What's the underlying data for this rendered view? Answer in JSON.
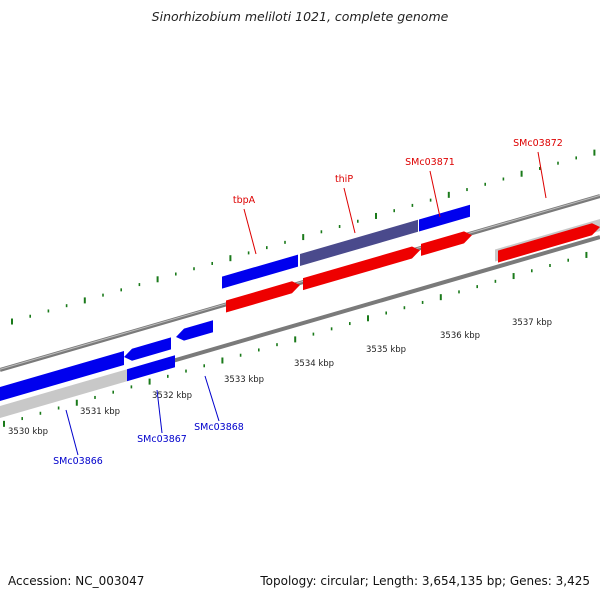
{
  "title": "Sinorhizobium meliloti 1021, complete genome",
  "footer": {
    "accession": "Accession: NC_003047",
    "summary": "Topology: circular; Length: 3,654,135 bp; Genes: 3,425"
  },
  "colors": {
    "forward_gene": "#0000ee",
    "forward_cds": "#ee0000",
    "reverse_gene": "#0000ee",
    "highlight_gene": "#4a4a8c",
    "pseudo_track": "#c8c8c8",
    "backbone": "#7a7a7a",
    "tick": "#1a7a1a",
    "label_forward": "#dd0000",
    "label_reverse": "#0000cc"
  },
  "scale_labels": [
    "3530 kbp",
    "3531 kbp",
    "3532 kbp",
    "3533 kbp",
    "3534 kbp",
    "3535 kbp",
    "3536 kbp",
    "3537 kbp"
  ],
  "forward_labels": [
    "tbpA",
    "thiP",
    "SMc03871",
    "SMc03872"
  ],
  "reverse_labels": [
    "SMc03866",
    "SMc03867",
    "SMc03868"
  ]
}
